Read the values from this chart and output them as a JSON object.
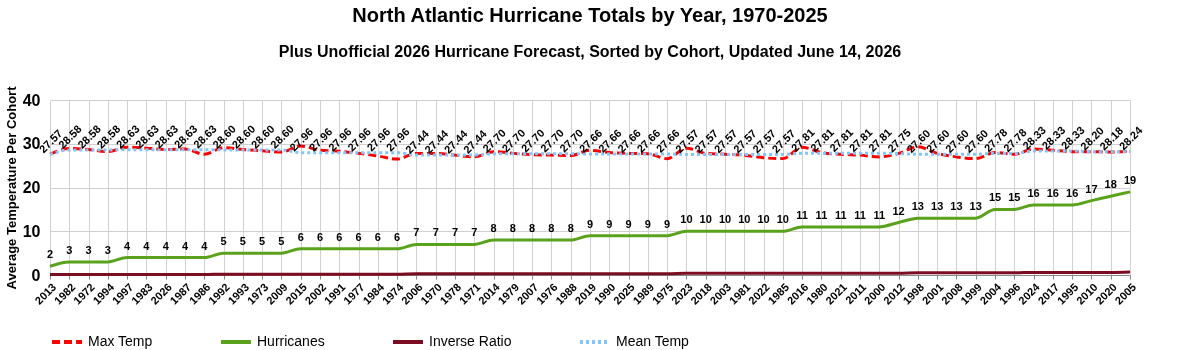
{
  "chart_data": {
    "type": "line",
    "title": "North Atlantic Hurricane Totals by Year, 1970-2025",
    "subtitle": "Plus Unofficial 2026 Hurricane Forecast, Sorted by Cohort, Updated June 14, 2026",
    "ylabel": "Average Temperature Per Cohort",
    "categories": [
      "2013",
      "1982",
      "1972",
      "1994",
      "1997",
      "1983",
      "2026",
      "1987",
      "1986",
      "1992",
      "1993",
      "1973",
      "2009",
      "2015",
      "2002",
      "1991",
      "1977",
      "1984",
      "1974",
      "2006",
      "1970",
      "1978",
      "1971",
      "2014",
      "1979",
      "2007",
      "1976",
      "1988",
      "2019",
      "1990",
      "2025",
      "1989",
      "1975",
      "2023",
      "2018",
      "2003",
      "1981",
      "2022",
      "1985",
      "2016",
      "1980",
      "2021",
      "2011",
      "2000",
      "2012",
      "1998",
      "2001",
      "2008",
      "1999",
      "2004",
      "1996",
      "2024",
      "2017",
      "1995",
      "2010",
      "2020",
      "2005"
    ],
    "ylim": [
      0,
      40
    ],
    "yticks": [
      0,
      10,
      20,
      30,
      40
    ],
    "grid": true,
    "legend": "bottom",
    "marker": "none",
    "series": [
      {
        "name": "Max Temp",
        "color": "#ff0000",
        "line_style": "dashed",
        "values": [
          27.6,
          28.9,
          28.7,
          28.2,
          29.2,
          29.0,
          28.7,
          28.8,
          27.6,
          29.1,
          28.7,
          28.4,
          28.1,
          29.5,
          28.5,
          28.3,
          27.8,
          27.2,
          26.5,
          27.8,
          27.8,
          27.4,
          27.0,
          28.2,
          27.8,
          27.5,
          27.4,
          27.3,
          28.5,
          28.0,
          27.8,
          27.7,
          26.6,
          29.0,
          27.8,
          27.6,
          27.4,
          26.8,
          26.6,
          29.2,
          28.0,
          27.6,
          27.4,
          27.0,
          27.8,
          29.3,
          27.8,
          27.0,
          26.6,
          28.0,
          27.6,
          28.8,
          28.5,
          28.2,
          28.2,
          28.1,
          28.3
        ]
      },
      {
        "name": "Hurricanes",
        "color": "#5ba21c",
        "line_style": "solid",
        "data_labels": true,
        "values": [
          2,
          3,
          3,
          3,
          4,
          4,
          4,
          4,
          4,
          5,
          5,
          5,
          5,
          6,
          6,
          6,
          6,
          6,
          6,
          7,
          7,
          7,
          7,
          8,
          8,
          8,
          8,
          8,
          9,
          9,
          9,
          9,
          9,
          10,
          10,
          10,
          10,
          10,
          10,
          11,
          11,
          11,
          11,
          11,
          12,
          13,
          13,
          13,
          13,
          15,
          15,
          16,
          16,
          16,
          17,
          18,
          19
        ]
      },
      {
        "name": "Inverse Ratio",
        "color": "#7b0c21",
        "line_style": "solid",
        "values": [
          0.1,
          0.1,
          0.1,
          0.1,
          0.1,
          0.1,
          0.1,
          0.1,
          0.1,
          0.2,
          0.2,
          0.2,
          0.2,
          0.2,
          0.2,
          0.2,
          0.2,
          0.2,
          0.2,
          0.3,
          0.3,
          0.3,
          0.3,
          0.3,
          0.3,
          0.3,
          0.3,
          0.3,
          0.3,
          0.3,
          0.3,
          0.3,
          0.3,
          0.4,
          0.4,
          0.4,
          0.4,
          0.4,
          0.4,
          0.4,
          0.4,
          0.4,
          0.4,
          0.4,
          0.4,
          0.5,
          0.5,
          0.5,
          0.5,
          0.5,
          0.5,
          0.6,
          0.6,
          0.6,
          0.6,
          0.6,
          0.7
        ]
      },
      {
        "name": "Mean Temp",
        "color": "#80c6fb",
        "line_style": "dotted",
        "values": [
          27.57,
          28.58,
          28.58,
          28.58,
          28.63,
          28.63,
          28.63,
          28.63,
          28.63,
          28.6,
          28.6,
          28.6,
          28.6,
          27.96,
          27.96,
          27.96,
          27.96,
          27.96,
          27.96,
          27.44,
          27.44,
          27.44,
          27.44,
          27.7,
          27.7,
          27.7,
          27.7,
          27.7,
          27.66,
          27.66,
          27.66,
          27.66,
          27.66,
          27.57,
          27.57,
          27.57,
          27.57,
          27.57,
          27.57,
          27.81,
          27.81,
          27.81,
          27.81,
          27.81,
          27.75,
          27.6,
          27.6,
          27.6,
          27.6,
          27.78,
          27.78,
          28.33,
          28.33,
          28.33,
          28.2,
          28.18,
          28.24
        ],
        "value_labels": [
          "27.57",
          "28.58",
          "28.58",
          "28.58",
          "28.63",
          "28.63",
          "28.63",
          "28.63",
          "28.63",
          "28.60",
          "28.60",
          "28.60",
          "28.60",
          "27.96",
          "27.96",
          "27.96",
          "27.96",
          "27.96",
          "27.96",
          "27.44",
          "27.44",
          "27.44",
          "27.44",
          "27.70",
          "27.70",
          "27.70",
          "27.70",
          "27.70",
          "27.66",
          "27.66",
          "27.66",
          "27.66",
          "27.66",
          "27.57",
          "27.57",
          "27.57",
          "27.57",
          "27.57",
          "27.57",
          "27.81",
          "27.81",
          "27.81",
          "27.81",
          "27.81",
          "27.75",
          "27.60",
          "27.60",
          "27.60",
          "27.60",
          "27.78",
          "27.78",
          "28.33",
          "28.33",
          "28.33",
          "28.20",
          "28.18",
          "28.24"
        ]
      }
    ]
  }
}
